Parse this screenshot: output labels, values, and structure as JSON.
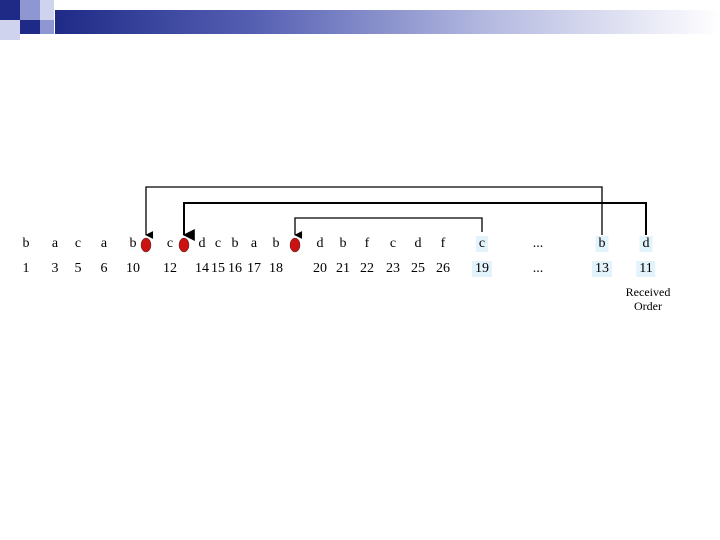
{
  "colors": {
    "banner_dark": "#1f2a87",
    "marker": "#cc1111",
    "highlight": "#e3f3fb"
  },
  "letters": [
    "b",
    "a",
    "c",
    "a",
    "b",
    "c",
    "d",
    "c",
    "b",
    "a",
    "b",
    "d",
    "b",
    "f",
    "c",
    "d",
    "f",
    "c",
    "...",
    "b",
    "d"
  ],
  "numbers": [
    "1",
    "3",
    "5",
    "6",
    "10",
    "12",
    "14",
    "15",
    "16",
    "17",
    "18",
    "20",
    "21",
    "22",
    "23",
    "25",
    "26",
    "19",
    "...",
    "13",
    "11"
  ],
  "highlighted_entries": [
    17,
    19,
    20
  ],
  "markers_after_entry": [
    4,
    5,
    10
  ],
  "arrows": [
    {
      "from_entry": 19,
      "to_marker": 0
    },
    {
      "from_entry": 20,
      "to_marker": 1
    },
    {
      "from_entry": 17,
      "to_marker": 2
    }
  ],
  "caption_line1": "Received",
  "caption_line2": "Order"
}
